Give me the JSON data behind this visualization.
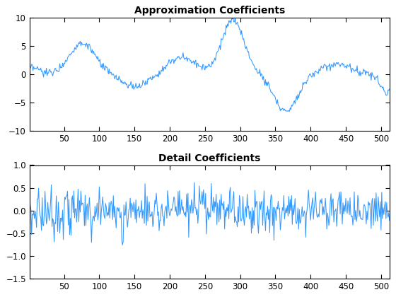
{
  "x_min": 1,
  "x_max": 512,
  "approx_title": "Approximation Coefficients",
  "detail_title": "Detail Coefficients",
  "approx_ylim": [
    -10,
    10
  ],
  "detail_ylim": [
    -1.5,
    1.0
  ],
  "approx_yticks": [
    -10,
    -5,
    0,
    5,
    10
  ],
  "detail_yticks": [
    -1.5,
    -1.0,
    -0.5,
    0.0,
    0.5,
    1.0
  ],
  "xticks": [
    50,
    100,
    150,
    200,
    250,
    300,
    350,
    400,
    450,
    500
  ],
  "line_color": "#3399FF",
  "line_width": 0.75,
  "bg_color": "#ffffff",
  "title_fontsize": 10,
  "tick_fontsize": 8.5,
  "fig_width": 5.6,
  "fig_height": 4.2,
  "dpi": 100
}
